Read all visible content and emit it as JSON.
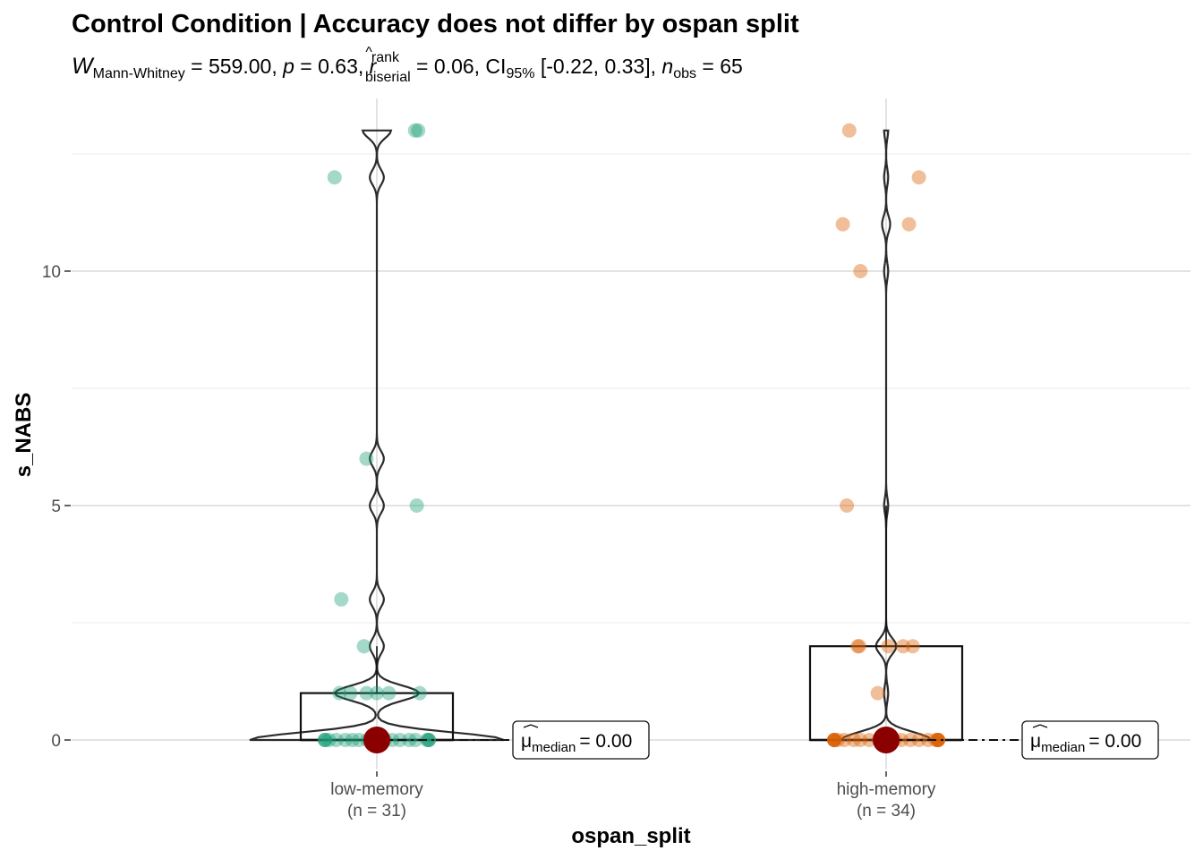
{
  "chart_data": {
    "type": "violin-box-scatter",
    "title": "Control Condition | Accuracy does not differ by ospan split",
    "subtitle": {
      "W_symbol": "W",
      "W_sub": "Mann-Whitney",
      "W_value": " = 559.00, ",
      "p_symbol": "p",
      "p_value": " = 0.63, ",
      "r_symbol": "r",
      "r_hat": "^",
      "r_sup": "rank",
      "r_sub": "biserial",
      "r_value": " = 0.06, CI",
      "ci_sub": "95%",
      "ci_value": " [-0.22, 0.33], ",
      "n_symbol": "n",
      "n_sub": "obs",
      "n_value": " = 65"
    },
    "xlabel": "ospan_split",
    "ylabel": "s_NABS",
    "ylim": [
      -1.0,
      13.0
    ],
    "y_ticks": [
      0,
      5,
      10
    ],
    "y_tick_labels": [
      "0",
      "5",
      "10"
    ],
    "groups": [
      {
        "name": "low-memory",
        "n_label": "(n = 31)",
        "color": "#1B9E77",
        "points": [
          13,
          13,
          12,
          6,
          5,
          3,
          2,
          1,
          1,
          1,
          1,
          1,
          1,
          0,
          0,
          0,
          0,
          0,
          0,
          0,
          0,
          0,
          0,
          0,
          0,
          0,
          0,
          0,
          0,
          0,
          0
        ],
        "box": {
          "q1": 0,
          "median": 0,
          "q3": 1,
          "whisker_low": 0,
          "whisker_high": 2
        },
        "median_label": "= 0.00",
        "median_value": 0
      },
      {
        "name": "high-memory",
        "n_label": "(n = 34)",
        "color": "#D95F02",
        "points": [
          13,
          12,
          11,
          11,
          10,
          5,
          2,
          2,
          2,
          2,
          2,
          1,
          0,
          0,
          0,
          0,
          0,
          0,
          0,
          0,
          0,
          0,
          0,
          0,
          0,
          0,
          0,
          0,
          0,
          0,
          0,
          0,
          0,
          0
        ],
        "box": {
          "q1": 0,
          "median": 0,
          "q3": 2,
          "whisker_low": 0,
          "whisker_high": 5
        },
        "median_label": "= 0.00",
        "median_value": 0
      }
    ],
    "median_symbol": "μ",
    "median_sub": "median",
    "median_point_color": "#8B0000",
    "grid": true,
    "legend": "none"
  }
}
